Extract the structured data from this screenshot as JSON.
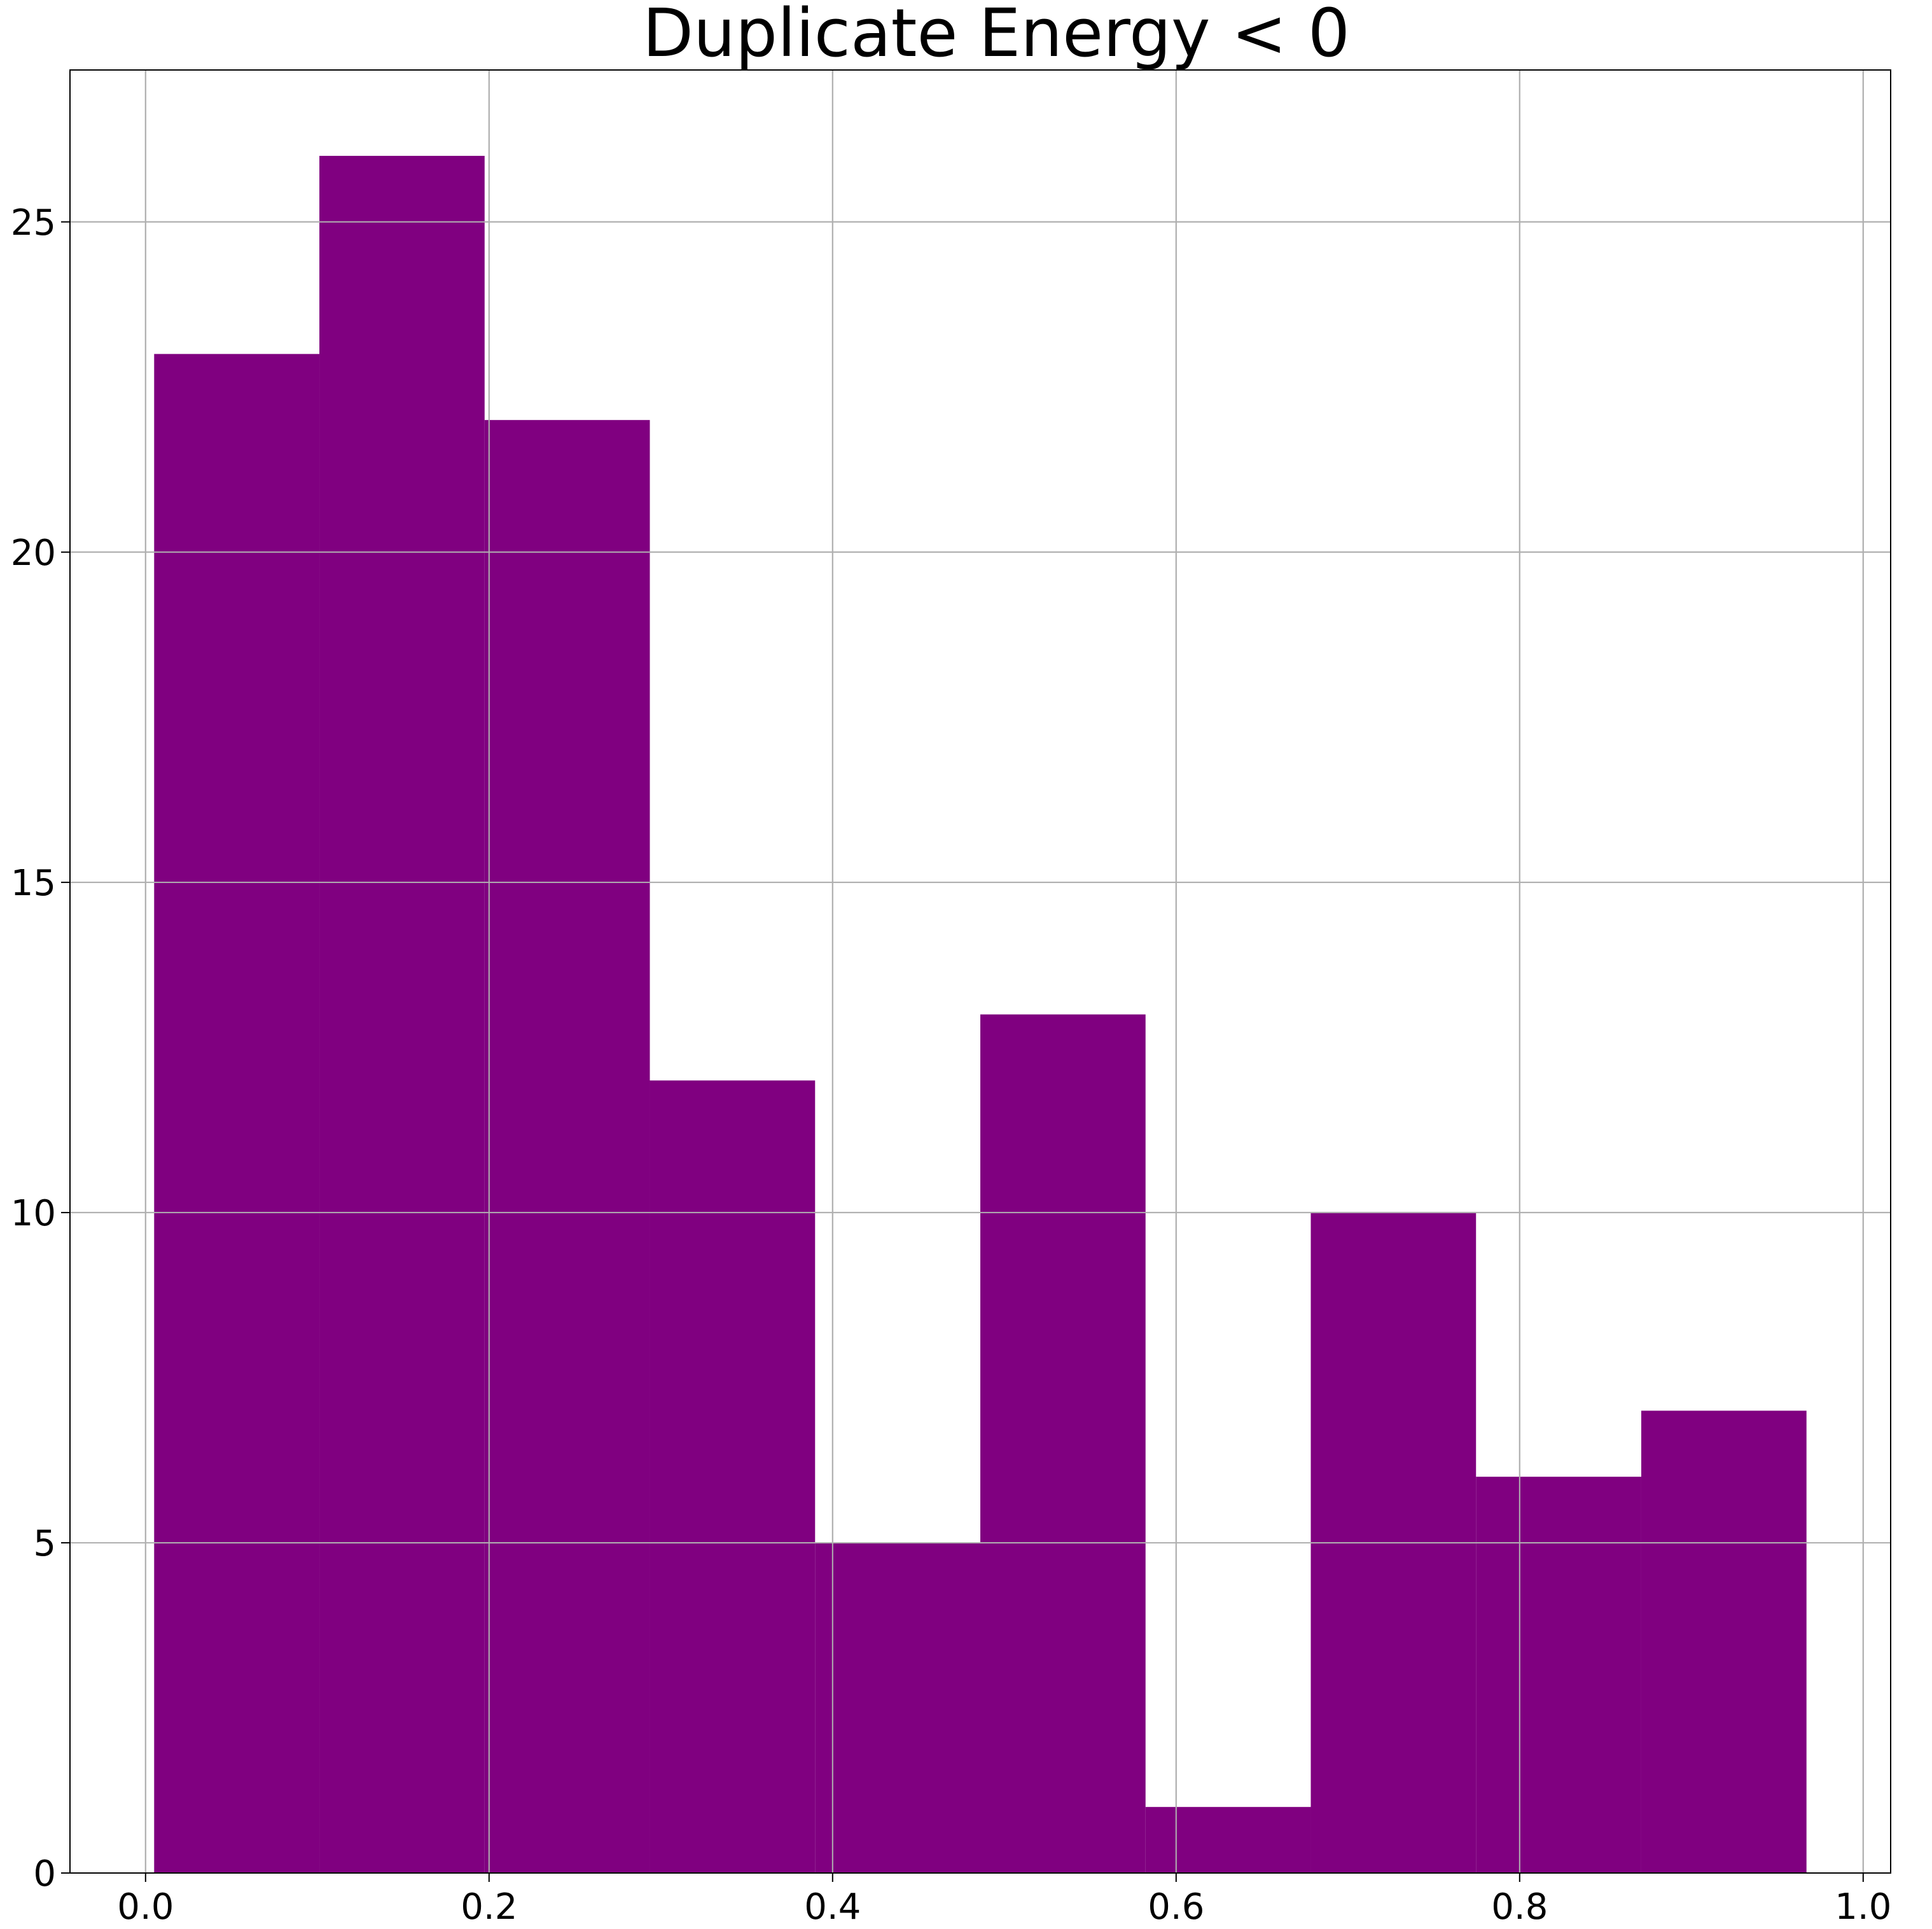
{
  "chart_data": {
    "type": "bar",
    "title": "Duplicate Energy < 0",
    "xlabel": "",
    "ylabel": "",
    "bin_edges": [
      0.005,
      0.1012,
      0.1974,
      0.2936,
      0.3898,
      0.486,
      0.5822,
      0.6784,
      0.7746,
      0.8708,
      0.967
    ],
    "values": [
      23,
      26,
      22,
      12,
      5,
      13,
      1,
      10,
      6,
      7
    ],
    "xlim": [
      -0.044,
      1.016
    ],
    "ylim": [
      0,
      27.3
    ],
    "x_ticks": [
      0.0,
      0.2,
      0.4,
      0.6,
      0.8,
      1.0
    ],
    "x_tick_labels": [
      "0.0",
      "0.2",
      "0.4",
      "0.6",
      "0.8",
      "1.0"
    ],
    "y_ticks": [
      0,
      5,
      10,
      15,
      20,
      25
    ],
    "y_tick_labels": [
      "0",
      "5",
      "10",
      "15",
      "20",
      "25"
    ],
    "grid": true,
    "bar_color": "#800080",
    "grid_color": "#b0b0b0"
  }
}
